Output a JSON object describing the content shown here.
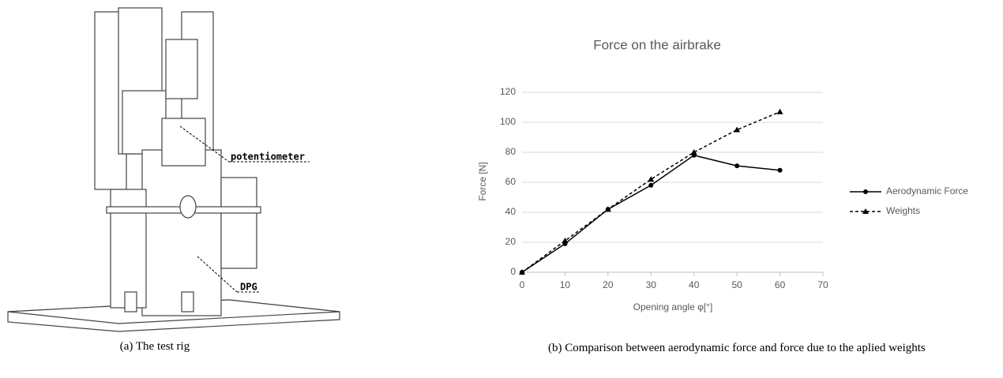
{
  "figure": {
    "a": {
      "caption": "(a) The test rig",
      "labels": [
        "potentiometer",
        "DPG"
      ]
    },
    "b": {
      "caption": "(b) Comparison between aerodynamic force and force due to the aplied weights"
    }
  },
  "chart_data": {
    "type": "line",
    "title": "Force on the airbrake",
    "x_label": "Opening angle φ[°]",
    "y_label": "Force [N]",
    "x": [
      0,
      10,
      20,
      30,
      40,
      50,
      60
    ],
    "series": [
      {
        "name": "Aerodynamic Force",
        "color": "#000000",
        "marker": "circle",
        "dash": "solid",
        "values": [
          0,
          19,
          42,
          58,
          78,
          71,
          68
        ]
      },
      {
        "name": "Weights",
        "color": "#000000",
        "marker": "triangle",
        "dash": "dashed",
        "values": [
          0,
          21,
          42,
          62,
          80,
          95,
          107
        ]
      }
    ],
    "xlim": [
      0,
      70
    ],
    "xticks": [
      0,
      10,
      20,
      30,
      40,
      50,
      60,
      70
    ],
    "ylim": [
      0,
      120
    ],
    "yticks": [
      0,
      20,
      40,
      60,
      80,
      100,
      120
    ],
    "grid": true,
    "legend": "right"
  }
}
